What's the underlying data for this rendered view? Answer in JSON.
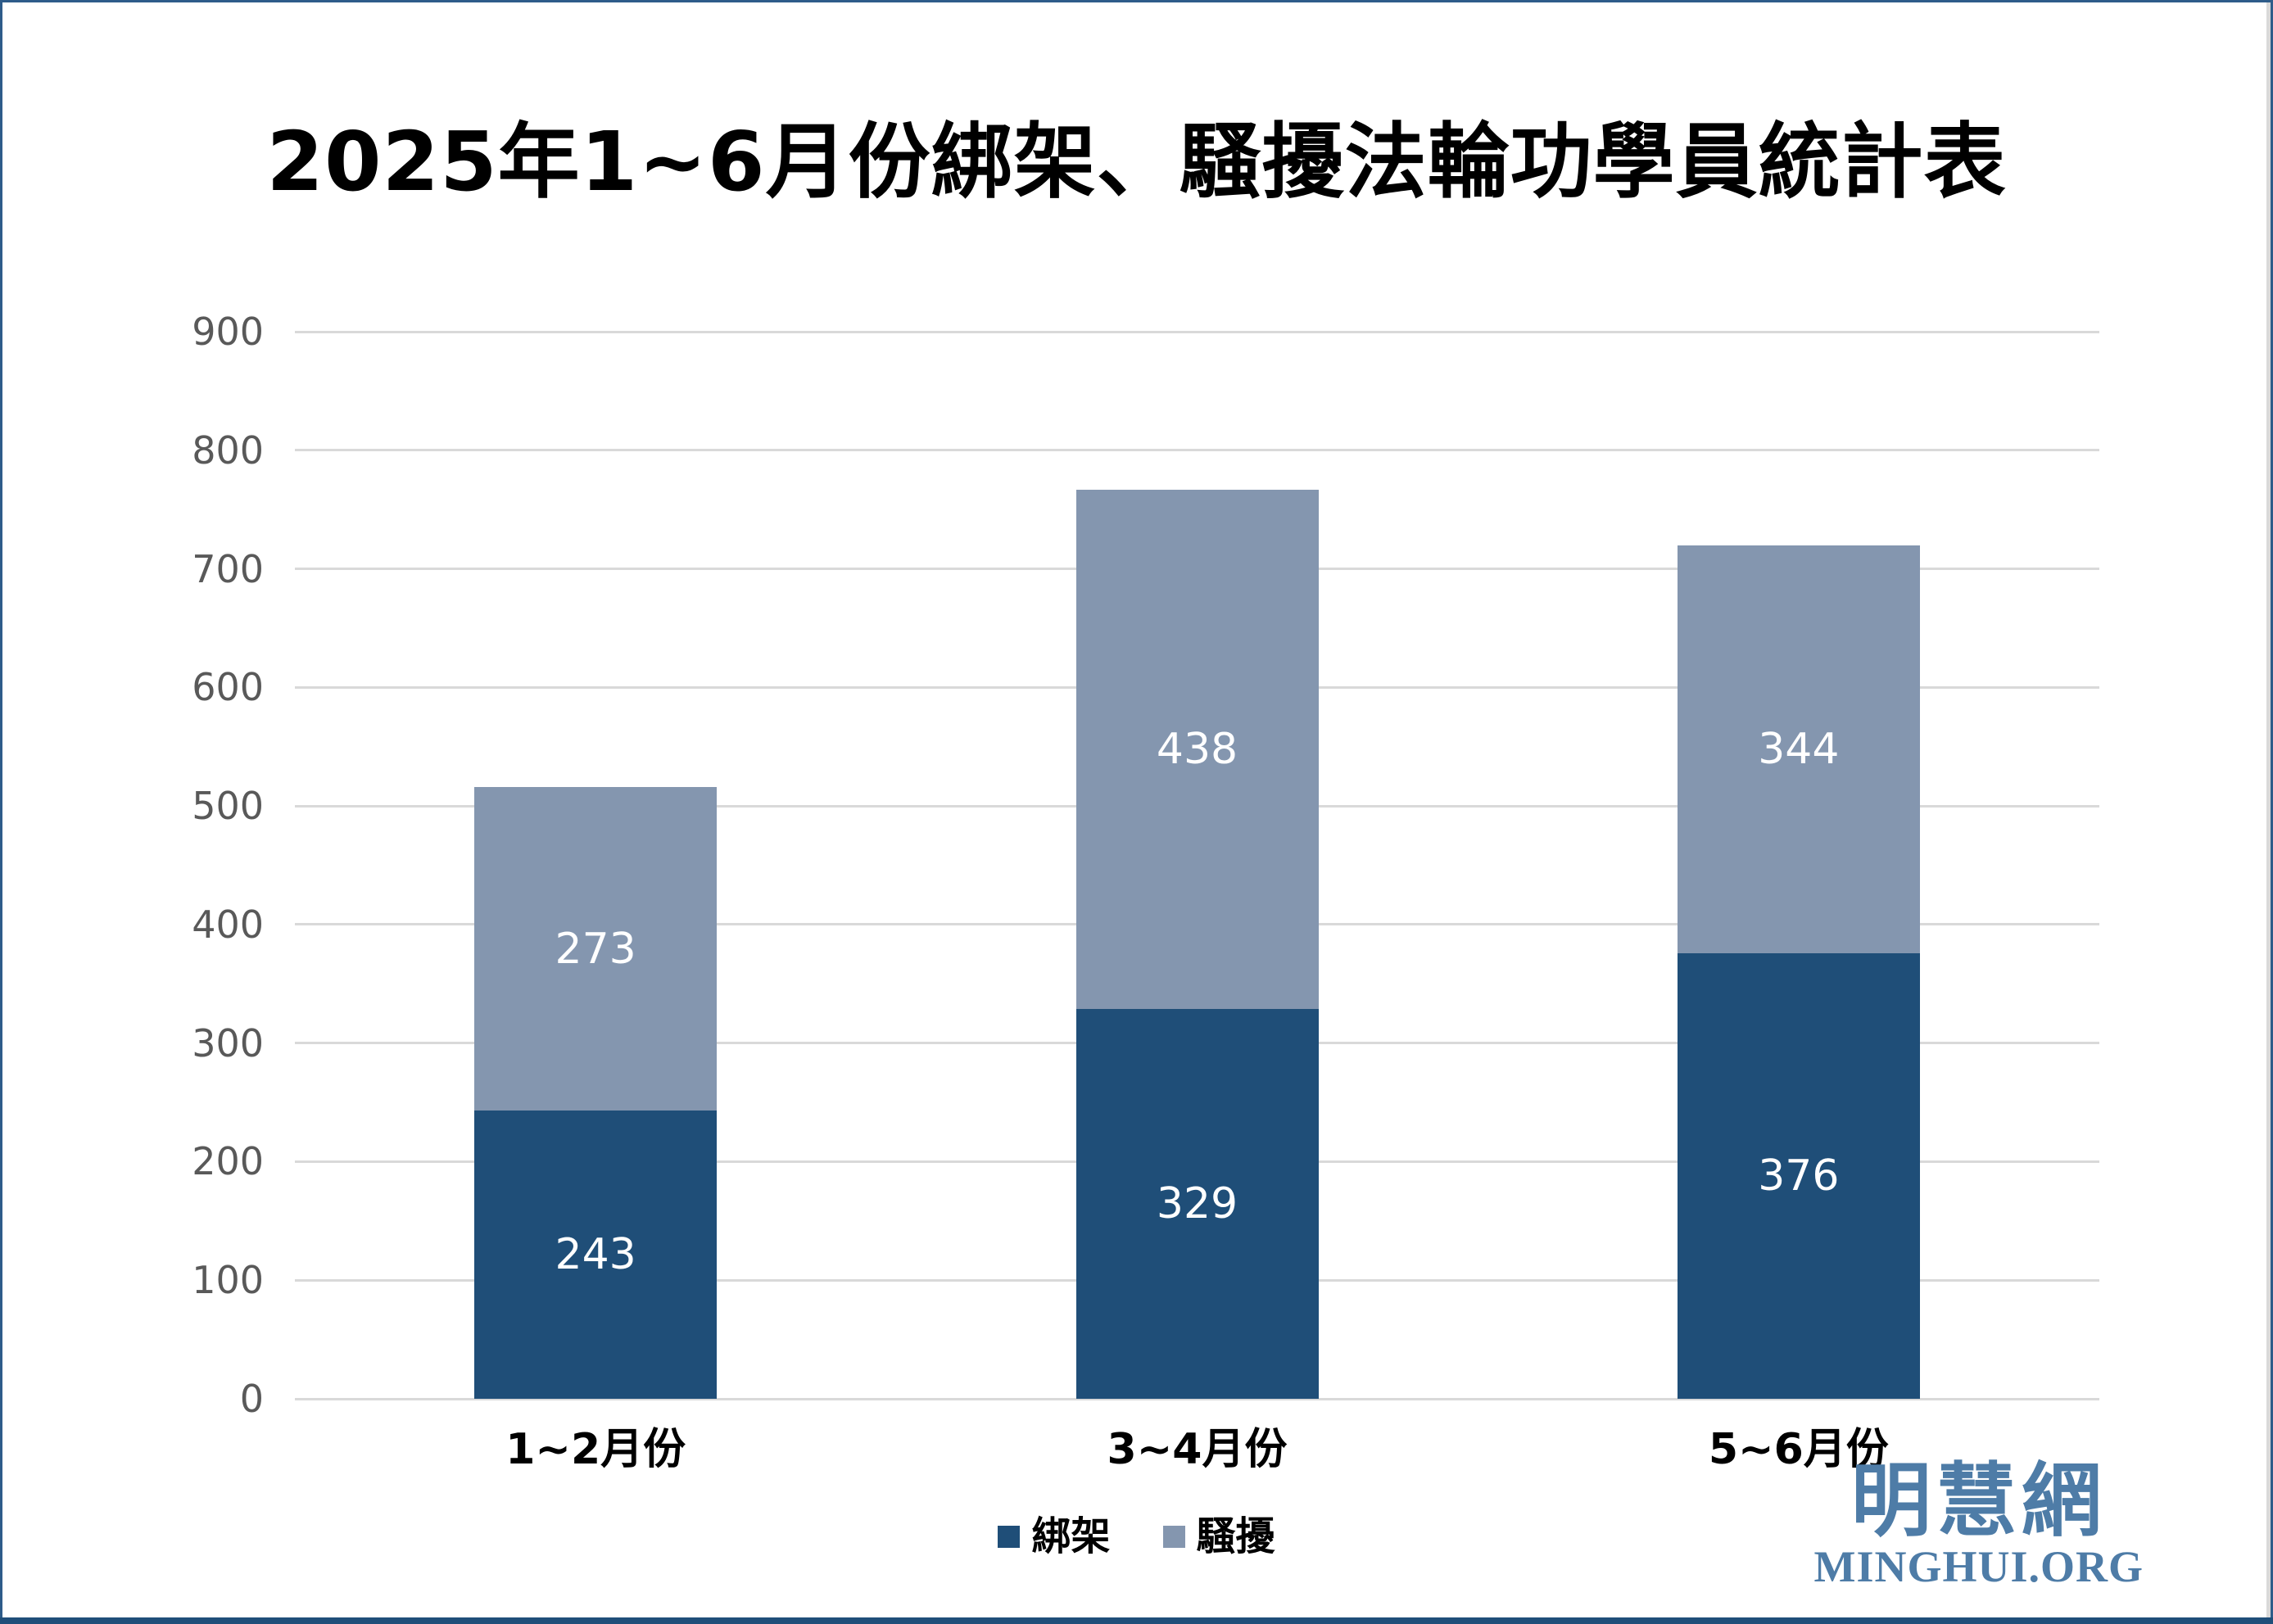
{
  "title": "2025年1~6月份綁架、騷擾法輪功學員統計表",
  "colors": {
    "kidnap": "#1F4E78",
    "harass": "#8496AF",
    "grid": "#D9D9D9",
    "axis_text": "#595959",
    "value_text": "#FFFFFF",
    "category_text": "#000000",
    "logo": "#4E7CA7",
    "frame": "#2E5C8A",
    "frame_bottom": "#1F4E79"
  },
  "chart_data": {
    "type": "bar",
    "stacked": true,
    "title": "2025年1~6月份綁架、騷擾法輪功學員統計表",
    "categories": [
      "1~2月份",
      "3~4月份",
      "5~6月份"
    ],
    "series": [
      {
        "name": "綁架",
        "color_key": "kidnap",
        "values": [
          243,
          329,
          376
        ]
      },
      {
        "name": "騷擾",
        "color_key": "harass",
        "values": [
          273,
          438,
          344
        ]
      }
    ],
    "totals": [
      516,
      767,
      720
    ],
    "xlabel": "",
    "ylabel": "",
    "ylim": [
      0,
      900
    ],
    "ytick_step": 100,
    "ytick_labels": [
      "0",
      "100",
      "200",
      "300",
      "400",
      "500",
      "600",
      "700",
      "800",
      "900"
    ],
    "grid": true,
    "legend_position": "bottom"
  },
  "logo": {
    "cn": "明慧網",
    "en": "MINGHUI.ORG"
  }
}
